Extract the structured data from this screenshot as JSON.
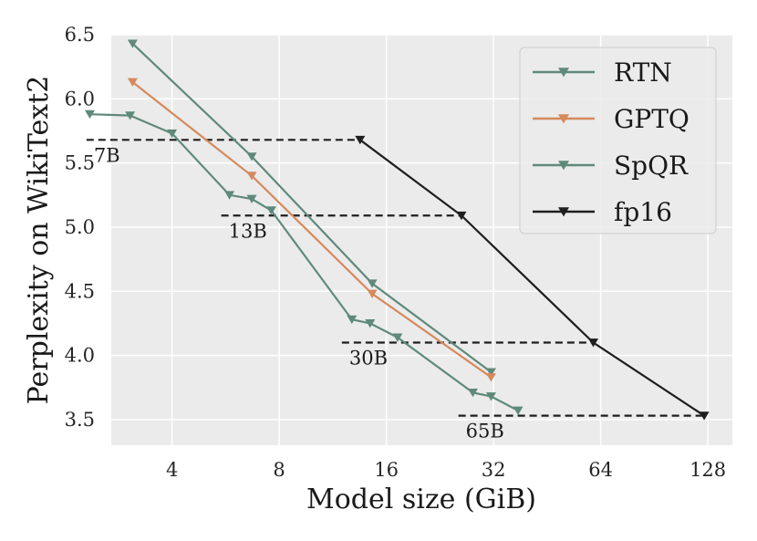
{
  "chart_data": {
    "type": "line",
    "xlabel": "Model size (GiB)",
    "ylabel": "Perplexity on WikiText2",
    "xscale": "log2",
    "xlim": [
      2.7,
      150
    ],
    "ylim": [
      3.3,
      6.5
    ],
    "xticks": [
      4,
      8,
      16,
      32,
      64,
      128
    ],
    "xtick_labels": [
      "4",
      "8",
      "16",
      "32",
      "64",
      "128"
    ],
    "yticks": [
      3.5,
      4.0,
      4.5,
      5.0,
      5.5,
      6.0,
      6.5
    ],
    "ytick_labels": [
      "3.5",
      "4.0",
      "4.5",
      "5.0",
      "5.5",
      "6.0",
      "6.5"
    ],
    "grid": true,
    "legend_position": "top-right",
    "series": [
      {
        "name": "RTN",
        "color": "#5f8a7a",
        "linestyle": "solid",
        "marker": "triangle-down",
        "x": [
          3.1,
          6.7,
          14.6,
          31.5
        ],
        "y": [
          6.43,
          5.55,
          4.56,
          3.87
        ]
      },
      {
        "name": "GPTQ",
        "color": "#d5895c",
        "linestyle": "solid",
        "marker": "triangle-down",
        "x": [
          3.1,
          6.7,
          14.6,
          31.5
        ],
        "y": [
          6.13,
          5.4,
          4.48,
          3.83
        ]
      },
      {
        "name": "SpQR",
        "color": "#5f8a7a",
        "linestyle": "solid",
        "marker": "triangle-down",
        "x": [
          2.35,
          3.05,
          4.0,
          5.8,
          6.7,
          7.6,
          12.8,
          14.4,
          17.2,
          28.0,
          31.5,
          37.5
        ],
        "y": [
          5.88,
          5.87,
          5.73,
          5.25,
          5.22,
          5.13,
          4.28,
          4.25,
          4.14,
          3.71,
          3.68,
          3.57
        ]
      },
      {
        "name": "fp16",
        "color": "#1e1e1e",
        "linestyle": "solid",
        "marker": "triangle-down",
        "x": [
          13.5,
          26.0,
          61.0,
          125.0
        ],
        "y": [
          5.68,
          5.09,
          4.1,
          3.53
        ]
      }
    ],
    "reference_lines": [
      {
        "label": "7B",
        "y": 5.68,
        "x_start": 2.3,
        "x_end": 13.5
      },
      {
        "label": "13B",
        "y": 5.09,
        "x_start": 5.5,
        "x_end": 26.0
      },
      {
        "label": "30B",
        "y": 4.1,
        "x_start": 12.0,
        "x_end": 61.0
      },
      {
        "label": "65B",
        "y": 3.53,
        "x_start": 25.5,
        "x_end": 125.0
      }
    ]
  }
}
